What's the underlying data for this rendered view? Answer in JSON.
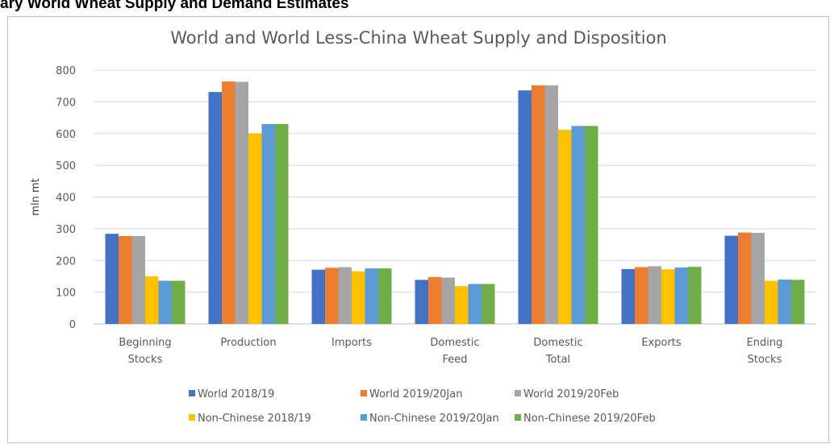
{
  "page_heading": "ary World Wheat Supply and Demand Estimates",
  "chart_data": {
    "type": "bar",
    "title": "World and World Less-China Wheat Supply and Disposition",
    "xlabel": "",
    "ylabel": "mln mt",
    "ylim": [
      0,
      800
    ],
    "yticks": [
      0,
      100,
      200,
      300,
      400,
      500,
      600,
      700,
      800
    ],
    "grid": true,
    "legend_position": "bottom",
    "categories": [
      [
        "Beginning",
        "Stocks"
      ],
      [
        "Production"
      ],
      [
        "Imports"
      ],
      [
        "Domestic",
        "Feed"
      ],
      [
        "Domestic",
        "Total"
      ],
      [
        "Exports"
      ],
      [
        "Ending",
        "Stocks"
      ]
    ],
    "series": [
      {
        "name": "World 2018/19",
        "color": "#4472c4",
        "values": [
          284,
          731,
          171,
          139,
          736,
          173,
          278
        ]
      },
      {
        "name": "World 2019/20Jan",
        "color": "#ed7d31",
        "values": [
          277,
          764,
          177,
          148,
          752,
          179,
          288
        ]
      },
      {
        "name": "World 2019/20Feb",
        "color": "#a5a5a5",
        "values": [
          277,
          763,
          179,
          146,
          752,
          182,
          287
        ]
      },
      {
        "name": "Non-Chinese 2018/19",
        "color": "#ffc000",
        "values": [
          150,
          601,
          166,
          119,
          612,
          172,
          136
        ]
      },
      {
        "name": "Non-Chinese 2019/20Jan",
        "color": "#5b9bd5",
        "values": [
          136,
          630,
          175,
          126,
          624,
          178,
          140
        ]
      },
      {
        "name": "Non-Chinese 2019/20Feb",
        "color": "#70ad47",
        "values": [
          136,
          630,
          175,
          126,
          624,
          180,
          139
        ]
      }
    ]
  }
}
